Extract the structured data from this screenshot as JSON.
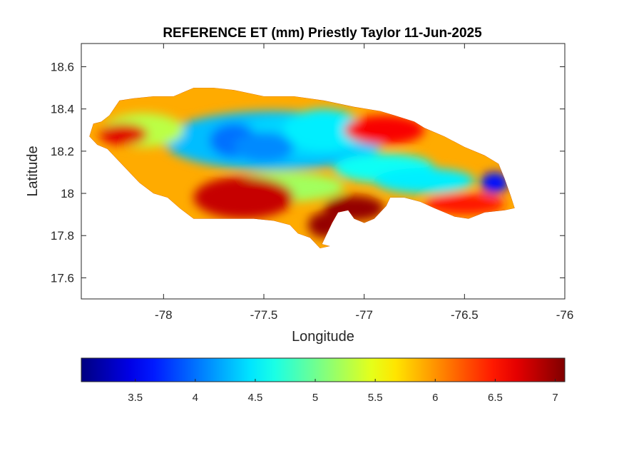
{
  "chart_data": {
    "type": "heatmap",
    "title": "REFERENCE ET (mm) Priestly Taylor 11-Jun-2025",
    "xlabel": "Longitude",
    "ylabel": "Latitude",
    "xlim": [
      -78.41,
      -76.0
    ],
    "ylim": [
      17.5,
      18.71
    ],
    "xticks": [
      "-78",
      "-77.5",
      "-77",
      "-76.5",
      "-76"
    ],
    "xtick_values": [
      -78,
      -77.5,
      -77,
      -76.5,
      -76
    ],
    "yticks": [
      "17.6",
      "17.8",
      "18",
      "18.2",
      "18.4",
      "18.6"
    ],
    "ytick_values": [
      17.6,
      17.8,
      18.0,
      18.2,
      18.4,
      18.6
    ],
    "colormap": "jet",
    "colorbar": {
      "location": "bottom",
      "clim": [
        3.05,
        7.08
      ],
      "ticks": [
        "3.5",
        "4",
        "4.5",
        "5",
        "5.5",
        "6",
        "6.5",
        "7"
      ],
      "tick_values": [
        3.5,
        4.0,
        4.5,
        5.0,
        5.5,
        6.0,
        6.5,
        7.0
      ]
    },
    "island_outline": [
      [
        -78.37,
        18.27
      ],
      [
        -78.35,
        18.33
      ],
      [
        -78.31,
        18.34
      ],
      [
        -78.27,
        18.37
      ],
      [
        -78.22,
        18.44
      ],
      [
        -78.15,
        18.45
      ],
      [
        -78.05,
        18.46
      ],
      [
        -77.95,
        18.46
      ],
      [
        -77.85,
        18.5
      ],
      [
        -77.75,
        18.5
      ],
      [
        -77.65,
        18.49
      ],
      [
        -77.5,
        18.46
      ],
      [
        -77.35,
        18.46
      ],
      [
        -77.2,
        18.44
      ],
      [
        -77.05,
        18.41
      ],
      [
        -76.92,
        18.39
      ],
      [
        -76.85,
        18.37
      ],
      [
        -76.75,
        18.34
      ],
      [
        -76.7,
        18.31
      ],
      [
        -76.6,
        18.27
      ],
      [
        -76.5,
        18.22
      ],
      [
        -76.4,
        18.18
      ],
      [
        -76.33,
        18.14
      ],
      [
        -76.3,
        18.07
      ],
      [
        -76.27,
        17.99
      ],
      [
        -76.25,
        17.93
      ],
      [
        -76.3,
        17.92
      ],
      [
        -76.4,
        17.91
      ],
      [
        -76.48,
        17.88
      ],
      [
        -76.55,
        17.89
      ],
      [
        -76.65,
        17.93
      ],
      [
        -76.72,
        17.96
      ],
      [
        -76.8,
        17.98
      ],
      [
        -76.87,
        17.98
      ],
      [
        -76.89,
        17.94
      ],
      [
        -76.95,
        17.88
      ],
      [
        -77.0,
        17.86
      ],
      [
        -77.05,
        17.88
      ],
      [
        -77.08,
        17.92
      ],
      [
        -77.13,
        17.91
      ],
      [
        -77.16,
        17.86
      ],
      [
        -77.19,
        17.8
      ],
      [
        -77.21,
        17.76
      ],
      [
        -77.17,
        17.75
      ],
      [
        -77.22,
        17.74
      ],
      [
        -77.27,
        17.79
      ],
      [
        -77.33,
        17.81
      ],
      [
        -77.37,
        17.85
      ],
      [
        -77.45,
        17.87
      ],
      [
        -77.55,
        17.88
      ],
      [
        -77.7,
        17.88
      ],
      [
        -77.78,
        17.88
      ],
      [
        -77.85,
        17.88
      ],
      [
        -77.92,
        17.93
      ],
      [
        -77.98,
        17.98
      ],
      [
        -78.05,
        18.0
      ],
      [
        -78.12,
        18.05
      ],
      [
        -78.2,
        18.13
      ],
      [
        -78.28,
        18.21
      ],
      [
        -78.33,
        18.23
      ],
      [
        -78.37,
        18.27
      ]
    ],
    "field_blobs": [
      {
        "lon": -77.45,
        "lat": 18.25,
        "value": 4.3,
        "rx": 0.55,
        "ry": 0.14
      },
      {
        "lon": -77.3,
        "lat": 18.27,
        "value": 4.4,
        "rx": 0.35,
        "ry": 0.1
      },
      {
        "lon": -77.65,
        "lat": 18.25,
        "value": 4.0,
        "rx": 0.12,
        "ry": 0.08
      },
      {
        "lon": -77.5,
        "lat": 18.22,
        "value": 4.1,
        "rx": 0.15,
        "ry": 0.07
      },
      {
        "lon": -77.2,
        "lat": 18.3,
        "value": 4.5,
        "rx": 0.2,
        "ry": 0.1
      },
      {
        "lon": -76.9,
        "lat": 18.12,
        "value": 4.6,
        "rx": 0.25,
        "ry": 0.07
      },
      {
        "lon": -76.7,
        "lat": 18.06,
        "value": 4.5,
        "rx": 0.25,
        "ry": 0.06
      },
      {
        "lon": -76.35,
        "lat": 18.05,
        "value": 3.6,
        "rx": 0.07,
        "ry": 0.05
      },
      {
        "lon": -77.4,
        "lat": 18.03,
        "value": 5.2,
        "rx": 0.3,
        "ry": 0.07
      },
      {
        "lon": -78.1,
        "lat": 18.3,
        "value": 5.3,
        "rx": 0.2,
        "ry": 0.08
      },
      {
        "lon": -78.2,
        "lat": 18.28,
        "value": 6.7,
        "rx": 0.12,
        "ry": 0.05
      },
      {
        "lon": -77.6,
        "lat": 17.98,
        "value": 6.8,
        "rx": 0.25,
        "ry": 0.1
      },
      {
        "lon": -77.05,
        "lat": 17.93,
        "value": 7.0,
        "rx": 0.15,
        "ry": 0.06
      },
      {
        "lon": -77.2,
        "lat": 17.85,
        "value": 7.0,
        "rx": 0.08,
        "ry": 0.06
      },
      {
        "lon": -76.9,
        "lat": 18.3,
        "value": 6.6,
        "rx": 0.2,
        "ry": 0.07
      },
      {
        "lon": -76.5,
        "lat": 17.95,
        "value": 6.5,
        "rx": 0.2,
        "ry": 0.05
      }
    ]
  }
}
